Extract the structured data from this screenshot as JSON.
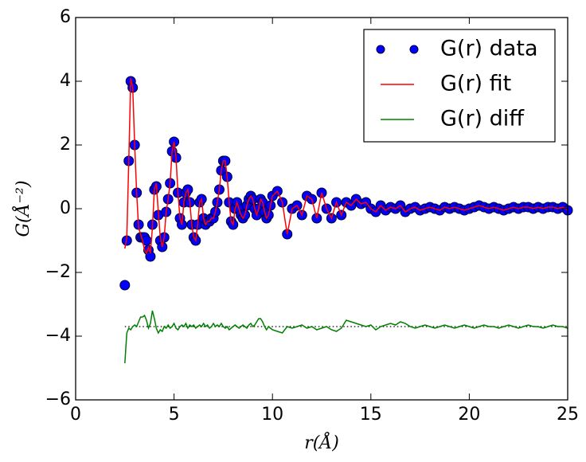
{
  "chart_data": {
    "type": "line",
    "xlabel": "r(Å)",
    "ylabel": "G(Å⁻²)",
    "xlim": [
      0,
      25
    ],
    "ylim": [
      -6,
      6
    ],
    "xticks": [
      0,
      5,
      10,
      15,
      20,
      25
    ],
    "yticks": [
      {
        "value": -6,
        "label": "−6"
      },
      {
        "value": -4,
        "label": "−4"
      },
      {
        "value": -2,
        "label": "−2"
      },
      0,
      2,
      4,
      6
    ],
    "grid": false,
    "legend": "upper right",
    "reference_line": -3.7,
    "x": [
      2.5,
      2.6,
      2.7,
      2.8,
      2.9,
      3.0,
      3.1,
      3.2,
      3.3,
      3.4,
      3.5,
      3.6,
      3.7,
      3.8,
      3.9,
      4.0,
      4.1,
      4.2,
      4.3,
      4.4,
      4.5,
      4.6,
      4.7,
      4.8,
      4.9,
      5.0,
      5.1,
      5.2,
      5.3,
      5.4,
      5.5,
      5.6,
      5.7,
      5.8,
      5.9,
      6.0,
      6.1,
      6.2,
      6.3,
      6.4,
      6.5,
      6.6,
      6.7,
      6.8,
      6.9,
      7.0,
      7.1,
      7.2,
      7.3,
      7.4,
      7.5,
      7.6,
      7.7,
      7.8,
      7.9,
      8.0,
      8.1,
      8.2,
      8.3,
      8.4,
      8.5,
      8.6,
      8.7,
      8.8,
      8.9,
      9.0,
      9.1,
      9.2,
      9.3,
      9.4,
      9.5,
      9.6,
      9.7,
      9.8,
      9.9,
      10.0,
      10.25,
      10.5,
      10.75,
      11.0,
      11.25,
      11.5,
      11.75,
      12.0,
      12.25,
      12.5,
      12.75,
      13.0,
      13.25,
      13.5,
      13.75,
      14.0,
      14.25,
      14.5,
      14.75,
      15.0,
      15.25,
      15.5,
      15.75,
      16.0,
      16.25,
      16.5,
      16.75,
      17.0,
      17.25,
      17.5,
      17.75,
      18.0,
      18.25,
      18.5,
      18.75,
      19.0,
      19.25,
      19.5,
      19.75,
      20.0,
      20.25,
      20.5,
      20.75,
      21.0,
      21.25,
      21.5,
      21.75,
      22.0,
      22.25,
      22.5,
      22.75,
      23.0,
      23.25,
      23.5,
      23.75,
      24.0,
      24.25,
      24.5,
      24.75,
      25.0
    ],
    "series": [
      {
        "name": "G(r) data",
        "style": "marker",
        "color": "#0000ff",
        "values": [
          -2.4,
          -1.0,
          1.5,
          4.0,
          3.8,
          2.0,
          0.5,
          -0.5,
          -0.9,
          -0.9,
          -0.9,
          -1.0,
          -1.3,
          -1.5,
          -0.5,
          0.6,
          0.7,
          -0.2,
          -1.0,
          -1.2,
          -0.9,
          -0.1,
          0.3,
          0.8,
          1.8,
          2.1,
          1.6,
          0.5,
          -0.3,
          -0.5,
          0.2,
          0.5,
          0.6,
          0.2,
          -0.5,
          -0.9,
          -1.0,
          -0.5,
          0.2,
          0.3,
          -0.3,
          -0.5,
          -0.4,
          -0.4,
          -0.3,
          -0.3,
          -0.1,
          0.2,
          0.6,
          1.2,
          1.5,
          1.5,
          1.0,
          0.2,
          -0.4,
          -0.5,
          0.0,
          0.2,
          0.0,
          -0.2,
          -0.3,
          -0.2,
          0.1,
          0.3,
          0.4,
          0.3,
          0.0,
          -0.2,
          0.0,
          0.3,
          0.2,
          -0.1,
          -0.3,
          -0.2,
          0.1,
          0.4,
          0.55,
          0.2,
          -0.8,
          0.0,
          0.1,
          -0.2,
          0.4,
          0.3,
          -0.3,
          0.5,
          0.0,
          -0.3,
          0.2,
          -0.2,
          0.2,
          0.1,
          0.3,
          0.15,
          0.2,
          0.0,
          -0.1,
          0.1,
          -0.05,
          0.05,
          0.0,
          0.1,
          -0.1,
          0.0,
          0.05,
          -0.05,
          0.0,
          0.05,
          0.0,
          -0.05,
          0.05,
          0.0,
          0.05,
          0.0,
          -0.05,
          0.0,
          0.05,
          0.1,
          0.05,
          0.0,
          0.05,
          0.0,
          -0.05,
          0.0,
          0.05,
          0.0,
          0.05,
          0.05,
          0.0,
          0.05,
          0.0,
          0.05,
          0.05,
          0.0,
          0.05,
          -0.05
        ]
      },
      {
        "name": "G(r) fit",
        "style": "line",
        "color": "#ff0000",
        "values": [
          -1.25,
          -0.9,
          1.5,
          4.1,
          3.8,
          2.0,
          0.5,
          -0.6,
          -0.8,
          -1.0,
          -1.3,
          -1.4,
          -1.2,
          -1.4,
          -0.6,
          0.6,
          0.8,
          -0.1,
          -0.9,
          -1.2,
          -0.9,
          -0.1,
          0.3,
          0.8,
          1.8,
          2.1,
          1.6,
          0.5,
          -0.3,
          -0.5,
          0.2,
          0.5,
          0.6,
          0.2,
          -0.5,
          -0.9,
          -1.0,
          -0.5,
          0.2,
          0.3,
          -0.3,
          -0.5,
          -0.4,
          -0.4,
          -0.3,
          -0.3,
          -0.1,
          0.2,
          0.6,
          1.2,
          1.5,
          1.5,
          1.0,
          0.2,
          -0.4,
          -0.5,
          0.0,
          0.2,
          0.0,
          -0.2,
          -0.3,
          -0.2,
          0.1,
          0.3,
          0.4,
          0.3,
          0.0,
          -0.2,
          0.0,
          0.3,
          0.2,
          -0.1,
          -0.3,
          -0.2,
          0.1,
          0.4,
          0.55,
          0.2,
          -0.8,
          0.0,
          0.1,
          -0.2,
          0.4,
          0.3,
          -0.3,
          0.5,
          0.0,
          -0.3,
          0.2,
          -0.2,
          0.2,
          0.1,
          0.3,
          0.15,
          0.2,
          0.0,
          -0.1,
          0.1,
          -0.05,
          0.05,
          0.0,
          0.1,
          -0.1,
          0.0,
          0.05,
          -0.05,
          0.0,
          0.05,
          0.0,
          -0.05,
          0.05,
          0.0,
          0.05,
          0.0,
          -0.05,
          0.0,
          0.05,
          0.1,
          0.05,
          0.0,
          0.05,
          0.0,
          -0.05,
          0.0,
          0.05,
          0.0,
          0.05,
          0.05,
          0.0,
          0.05,
          0.0,
          0.05,
          0.05,
          0.0,
          0.05,
          -0.05
        ]
      },
      {
        "name": "G(r) diff",
        "style": "line",
        "color": "#008000",
        "values": [
          -4.85,
          -3.9,
          -3.75,
          -3.8,
          -3.7,
          -3.65,
          -3.7,
          -3.55,
          -3.4,
          -3.4,
          -3.35,
          -3.5,
          -3.75,
          -3.6,
          -3.2,
          -3.45,
          -3.75,
          -3.9,
          -3.8,
          -3.85,
          -3.7,
          -3.75,
          -3.65,
          -3.75,
          -3.7,
          -3.6,
          -3.75,
          -3.8,
          -3.7,
          -3.65,
          -3.7,
          -3.6,
          -3.75,
          -3.65,
          -3.7,
          -3.65,
          -3.75,
          -3.7,
          -3.65,
          -3.7,
          -3.6,
          -3.7,
          -3.65,
          -3.75,
          -3.7,
          -3.6,
          -3.7,
          -3.65,
          -3.7,
          -3.6,
          -3.7,
          -3.75,
          -3.7,
          -3.8,
          -3.75,
          -3.7,
          -3.65,
          -3.7,
          -3.75,
          -3.7,
          -3.65,
          -3.7,
          -3.75,
          -3.65,
          -3.6,
          -3.7,
          -3.65,
          -3.55,
          -3.45,
          -3.45,
          -3.55,
          -3.7,
          -3.8,
          -3.7,
          -3.75,
          -3.8,
          -3.85,
          -3.9,
          -3.7,
          -3.75,
          -3.7,
          -3.65,
          -3.75,
          -3.7,
          -3.8,
          -3.75,
          -3.7,
          -3.8,
          -3.85,
          -3.75,
          -3.5,
          -3.55,
          -3.6,
          -3.65,
          -3.7,
          -3.65,
          -3.8,
          -3.7,
          -3.65,
          -3.6,
          -3.65,
          -3.55,
          -3.6,
          -3.7,
          -3.75,
          -3.7,
          -3.65,
          -3.7,
          -3.75,
          -3.7,
          -3.65,
          -3.7,
          -3.75,
          -3.7,
          -3.65,
          -3.7,
          -3.75,
          -3.7,
          -3.65,
          -3.7,
          -3.7,
          -3.75,
          -3.7,
          -3.65,
          -3.7,
          -3.75,
          -3.7,
          -3.65,
          -3.7,
          -3.7,
          -3.75,
          -3.7,
          -3.65,
          -3.7,
          -3.7,
          -3.75
        ]
      }
    ]
  }
}
